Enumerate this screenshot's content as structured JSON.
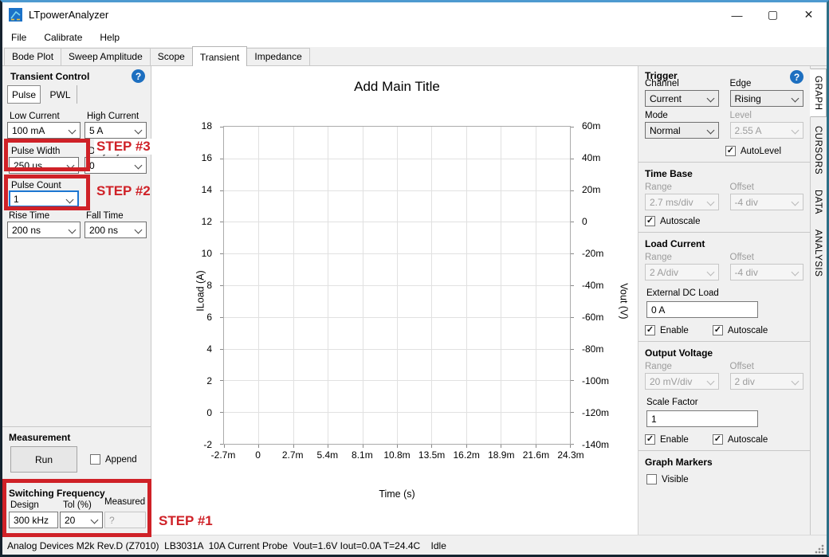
{
  "window": {
    "title": "LTpowerAnalyzer",
    "minimize": "—",
    "maximize": "▢",
    "close": "✕"
  },
  "menu": {
    "items": [
      "File",
      "Calibrate",
      "Help"
    ]
  },
  "tabs": {
    "items": [
      "Bode Plot",
      "Sweep Amplitude",
      "Scope",
      "Transient",
      "Impedance"
    ],
    "active": "Transient"
  },
  "left_panel": {
    "title": "Transient Control",
    "mode_tabs": {
      "pulse": "Pulse",
      "pwl": "PWL",
      "active": "Pulse"
    },
    "fields": {
      "low_current_label": "Low Current",
      "low_current_value": "100 mA",
      "high_current_label": "High Current",
      "high_current_value": "5 A",
      "pulse_width_label": "Pulse Width",
      "pulse_width_value": "250 us",
      "duty_cycle_label": "Duty Cycle",
      "duty_cycle_value": "0",
      "pulse_count_label": "Pulse Count",
      "pulse_count_value": "1",
      "rise_time_label": "Rise Time",
      "rise_time_value": "200 ns",
      "fall_time_label": "Fall Time",
      "fall_time_value": "200 ns"
    },
    "measurement": {
      "title": "Measurement",
      "run_label": "Run",
      "append_label": "Append"
    },
    "switching_frequency": {
      "title": "Switching Frequency",
      "design_label": "Design",
      "design_value": "300 kHz",
      "tol_label": "Tol (%)",
      "tol_value": "20",
      "measured_label": "Measured",
      "measured_value": "?"
    }
  },
  "annotations": {
    "step1": "STEP #1",
    "step2": "STEP #2",
    "step3": "STEP #3",
    "color": "#cf2127"
  },
  "chart_data": {
    "type": "line",
    "title": "Add Main Title",
    "xlabel": "Time (s)",
    "ylabel_left": "ILoad (A)",
    "ylabel_right": "Vout (V)",
    "x_ticks": [
      "-2.7m",
      "0",
      "2.7m",
      "5.4m",
      "8.1m",
      "10.8m",
      "13.5m",
      "16.2m",
      "18.9m",
      "21.6m",
      "24.3m"
    ],
    "y_ticks_left": [
      "18",
      "16",
      "14",
      "12",
      "10",
      "8",
      "6",
      "4",
      "2",
      "0",
      "-2"
    ],
    "y_ticks_right": [
      "60m",
      "40m",
      "20m",
      "0",
      "-20m",
      "-40m",
      "-60m",
      "-80m",
      "-100m",
      "-120m",
      "-140m"
    ],
    "xlim": [
      -0.0027,
      0.0243
    ],
    "ylim_left": [
      -2,
      18
    ],
    "ylim_right": [
      -0.14,
      0.06
    ],
    "grid": true,
    "series": []
  },
  "right_panel": {
    "trigger": {
      "title": "Trigger",
      "channel_label": "Channel",
      "channel_value": "Current",
      "edge_label": "Edge",
      "edge_value": "Rising",
      "mode_label": "Mode",
      "mode_value": "Normal",
      "level_label": "Level",
      "level_value": "2.55 A",
      "autolevel_label": "AutoLevel",
      "autolevel_checked": true
    },
    "time_base": {
      "title": "Time Base",
      "range_label": "Range",
      "range_value": "2.7 ms/div",
      "offset_label": "Offset",
      "offset_value": "-4 div",
      "autoscale_label": "Autoscale",
      "autoscale_checked": true
    },
    "load_current": {
      "title": "Load Current",
      "range_label": "Range",
      "range_value": "2 A/div",
      "offset_label": "Offset",
      "offset_value": "-4 div",
      "ext_dc_label": "External DC Load",
      "ext_dc_value": "0 A",
      "enable_label": "Enable",
      "enable_checked": true,
      "autoscale_label": "Autoscale",
      "autoscale_checked": true
    },
    "output_voltage": {
      "title": "Output Voltage",
      "range_label": "Range",
      "range_value": "20 mV/div",
      "offset_label": "Offset",
      "offset_value": "2 div",
      "scale_factor_label": "Scale Factor",
      "scale_factor_value": "1",
      "enable_label": "Enable",
      "enable_checked": true,
      "autoscale_label": "Autoscale",
      "autoscale_checked": true
    },
    "graph_markers": {
      "title": "Graph Markers",
      "visible_label": "Visible",
      "visible_checked": false
    }
  },
  "side_tabs": {
    "items": [
      "GRAPH",
      "CURSORS",
      "DATA",
      "ANALYSIS"
    ],
    "active": "GRAPH"
  },
  "status_bar": {
    "text": "Analog Devices M2k Rev.D (Z7010)  LB3031A  10A Current Probe  Vout=1.6V Iout=0.0A T=24.4C    Idle"
  }
}
